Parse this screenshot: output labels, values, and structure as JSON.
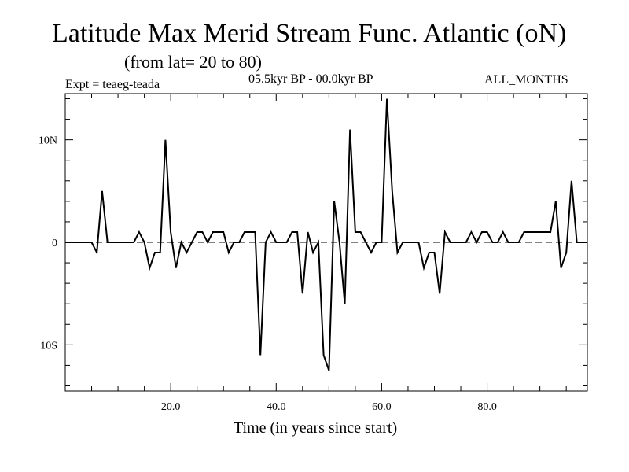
{
  "chart_data": {
    "type": "line",
    "title": "Latitude Max Merid Stream Func. Atlantic (oN)",
    "subtitle": "(from lat= 20 to 80)",
    "experiment": "Expt = teaeg-teada",
    "period": "05.5kyr BP - 00.0kyr BP",
    "months": "ALL_MONTHS",
    "xlabel": "Time (in years since start)",
    "ylabel": "",
    "xlim": [
      0,
      99
    ],
    "ylim": [
      -14.5,
      14.5
    ],
    "x_ticks": [
      20,
      40,
      60,
      80
    ],
    "x_tick_labels": [
      "20.0",
      "40.0",
      "60.0",
      "80.0"
    ],
    "y_ticks": [
      10,
      0,
      -10
    ],
    "y_tick_labels": [
      "10N",
      "0",
      "10S"
    ],
    "reference_line": 0,
    "series": [
      {
        "name": "teaeg-teada",
        "color": "#000000",
        "x": [
          0,
          1,
          2,
          3,
          4,
          5,
          6,
          7,
          8,
          9,
          10,
          11,
          12,
          13,
          14,
          15,
          16,
          17,
          18,
          19,
          20,
          21,
          22,
          23,
          24,
          25,
          26,
          27,
          28,
          29,
          30,
          31,
          32,
          33,
          34,
          35,
          36,
          37,
          38,
          39,
          40,
          41,
          42,
          43,
          44,
          45,
          46,
          47,
          48,
          49,
          50,
          51,
          52,
          53,
          54,
          55,
          56,
          57,
          58,
          59,
          60,
          61,
          62,
          63,
          64,
          65,
          66,
          67,
          68,
          69,
          70,
          71,
          72,
          73,
          74,
          75,
          76,
          77,
          78,
          79,
          80,
          81,
          82,
          83,
          84,
          85,
          86,
          87,
          88,
          89,
          90,
          91,
          92,
          93,
          94,
          95,
          96,
          97,
          98,
          99
        ],
        "values": [
          0,
          0,
          0,
          0,
          0,
          0,
          -1,
          5,
          0,
          0,
          0,
          0,
          0,
          0,
          1,
          0,
          -2.5,
          -1,
          -1,
          10,
          1,
          -2.5,
          0,
          -1,
          0,
          1,
          1,
          0,
          1,
          1,
          1,
          -1,
          0,
          0,
          1,
          1,
          1,
          -11,
          0,
          1,
          0,
          0,
          0,
          1,
          1,
          -5,
          1,
          -1,
          0,
          -11,
          -12.5,
          4,
          0,
          -6,
          11,
          1,
          1,
          0,
          -1,
          0,
          0,
          14,
          5,
          -1,
          0,
          0,
          0,
          0,
          -2.5,
          -1,
          -1,
          -5,
          1,
          0,
          0,
          0,
          0,
          1,
          0,
          1,
          1,
          0,
          0,
          1,
          0,
          0,
          0,
          1,
          1,
          1,
          1,
          1,
          1,
          4,
          -2.5,
          -1,
          6,
          0,
          0,
          0
        ]
      }
    ]
  }
}
